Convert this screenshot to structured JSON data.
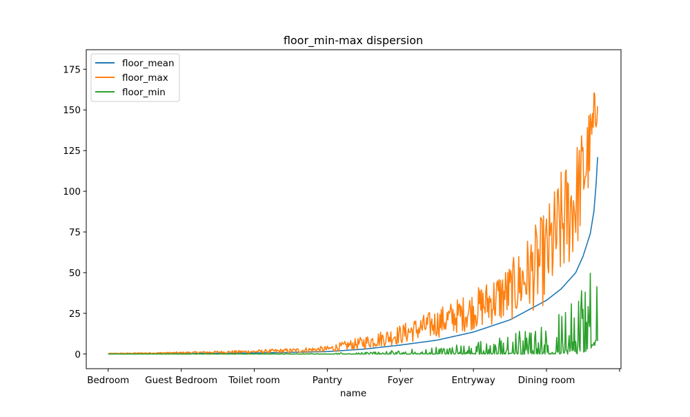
{
  "chart_data": {
    "type": "line",
    "title": "floor_min-max dispersion",
    "xlabel": "name",
    "ylabel": "",
    "x_tick_labels": [
      "Bedroom",
      "Guest Bedroom",
      "Toilet room",
      "Pantry",
      "Foyer",
      "Entryway",
      "Dining room",
      ""
    ],
    "x_tick_positions": [
      0,
      100,
      200,
      300,
      400,
      500,
      600,
      700
    ],
    "xlim": [
      -30,
      702
    ],
    "ylim": [
      -9,
      187
    ],
    "y_ticks": [
      0,
      25,
      50,
      75,
      100,
      125,
      150,
      175
    ],
    "n_points": 671,
    "legend": {
      "placement": "upper-left",
      "entries": [
        "floor_mean",
        "floor_max",
        "floor_min"
      ]
    },
    "grid": false,
    "series": [
      {
        "name": "floor_mean",
        "color": "#1f77b4",
        "x": [
          0,
          100,
          200,
          250,
          300,
          350,
          400,
          450,
          500,
          550,
          600,
          620,
          640,
          650,
          660,
          665,
          668,
          670
        ],
        "values": [
          0.1,
          0.3,
          0.7,
          1.0,
          1.5,
          3.0,
          5.5,
          8.5,
          13.5,
          21.0,
          33.0,
          40.0,
          50.0,
          60.0,
          74.0,
          88.0,
          105.0,
          121.0
        ]
      },
      {
        "name": "floor_max",
        "color": "#ff7f0e",
        "x": [
          0,
          100,
          200,
          250,
          300,
          350,
          400,
          450,
          500,
          550,
          600,
          620,
          640,
          650,
          660,
          665,
          668,
          670
        ],
        "values": [
          0.3,
          0.8,
          1.5,
          2.0,
          3.0,
          7.0,
          12.0,
          19.0,
          27.0,
          38.0,
          60.0,
          78.0,
          95.0,
          110.0,
          128.0,
          140.0,
          150.0,
          165.0
        ],
        "spread": [
          0.2,
          0.5,
          1.0,
          1.5,
          2.0,
          4.0,
          6.0,
          9.0,
          12.0,
          18.0,
          30.0,
          35.0,
          35.0,
          30.0,
          25.0,
          22.0,
          20.0,
          15.0
        ]
      },
      {
        "name": "floor_min",
        "color": "#2ca02c",
        "x": [
          0,
          100,
          200,
          300,
          350,
          400,
          450,
          500,
          550,
          600,
          620,
          640,
          650,
          660,
          665,
          668,
          670
        ],
        "values": [
          0.0,
          0.0,
          0.0,
          0.0,
          0.2,
          0.5,
          1.0,
          2.0,
          3.0,
          5.0,
          8.0,
          12.0,
          18.0,
          30.0,
          40.0,
          45.0,
          50.0
        ],
        "spread": [
          0.1,
          0.2,
          0.3,
          0.5,
          1.0,
          2.0,
          3.5,
          5.0,
          10.0,
          14.0,
          18.0,
          22.0,
          28.0,
          30.0,
          30.0,
          25.0,
          20.0
        ]
      }
    ]
  }
}
